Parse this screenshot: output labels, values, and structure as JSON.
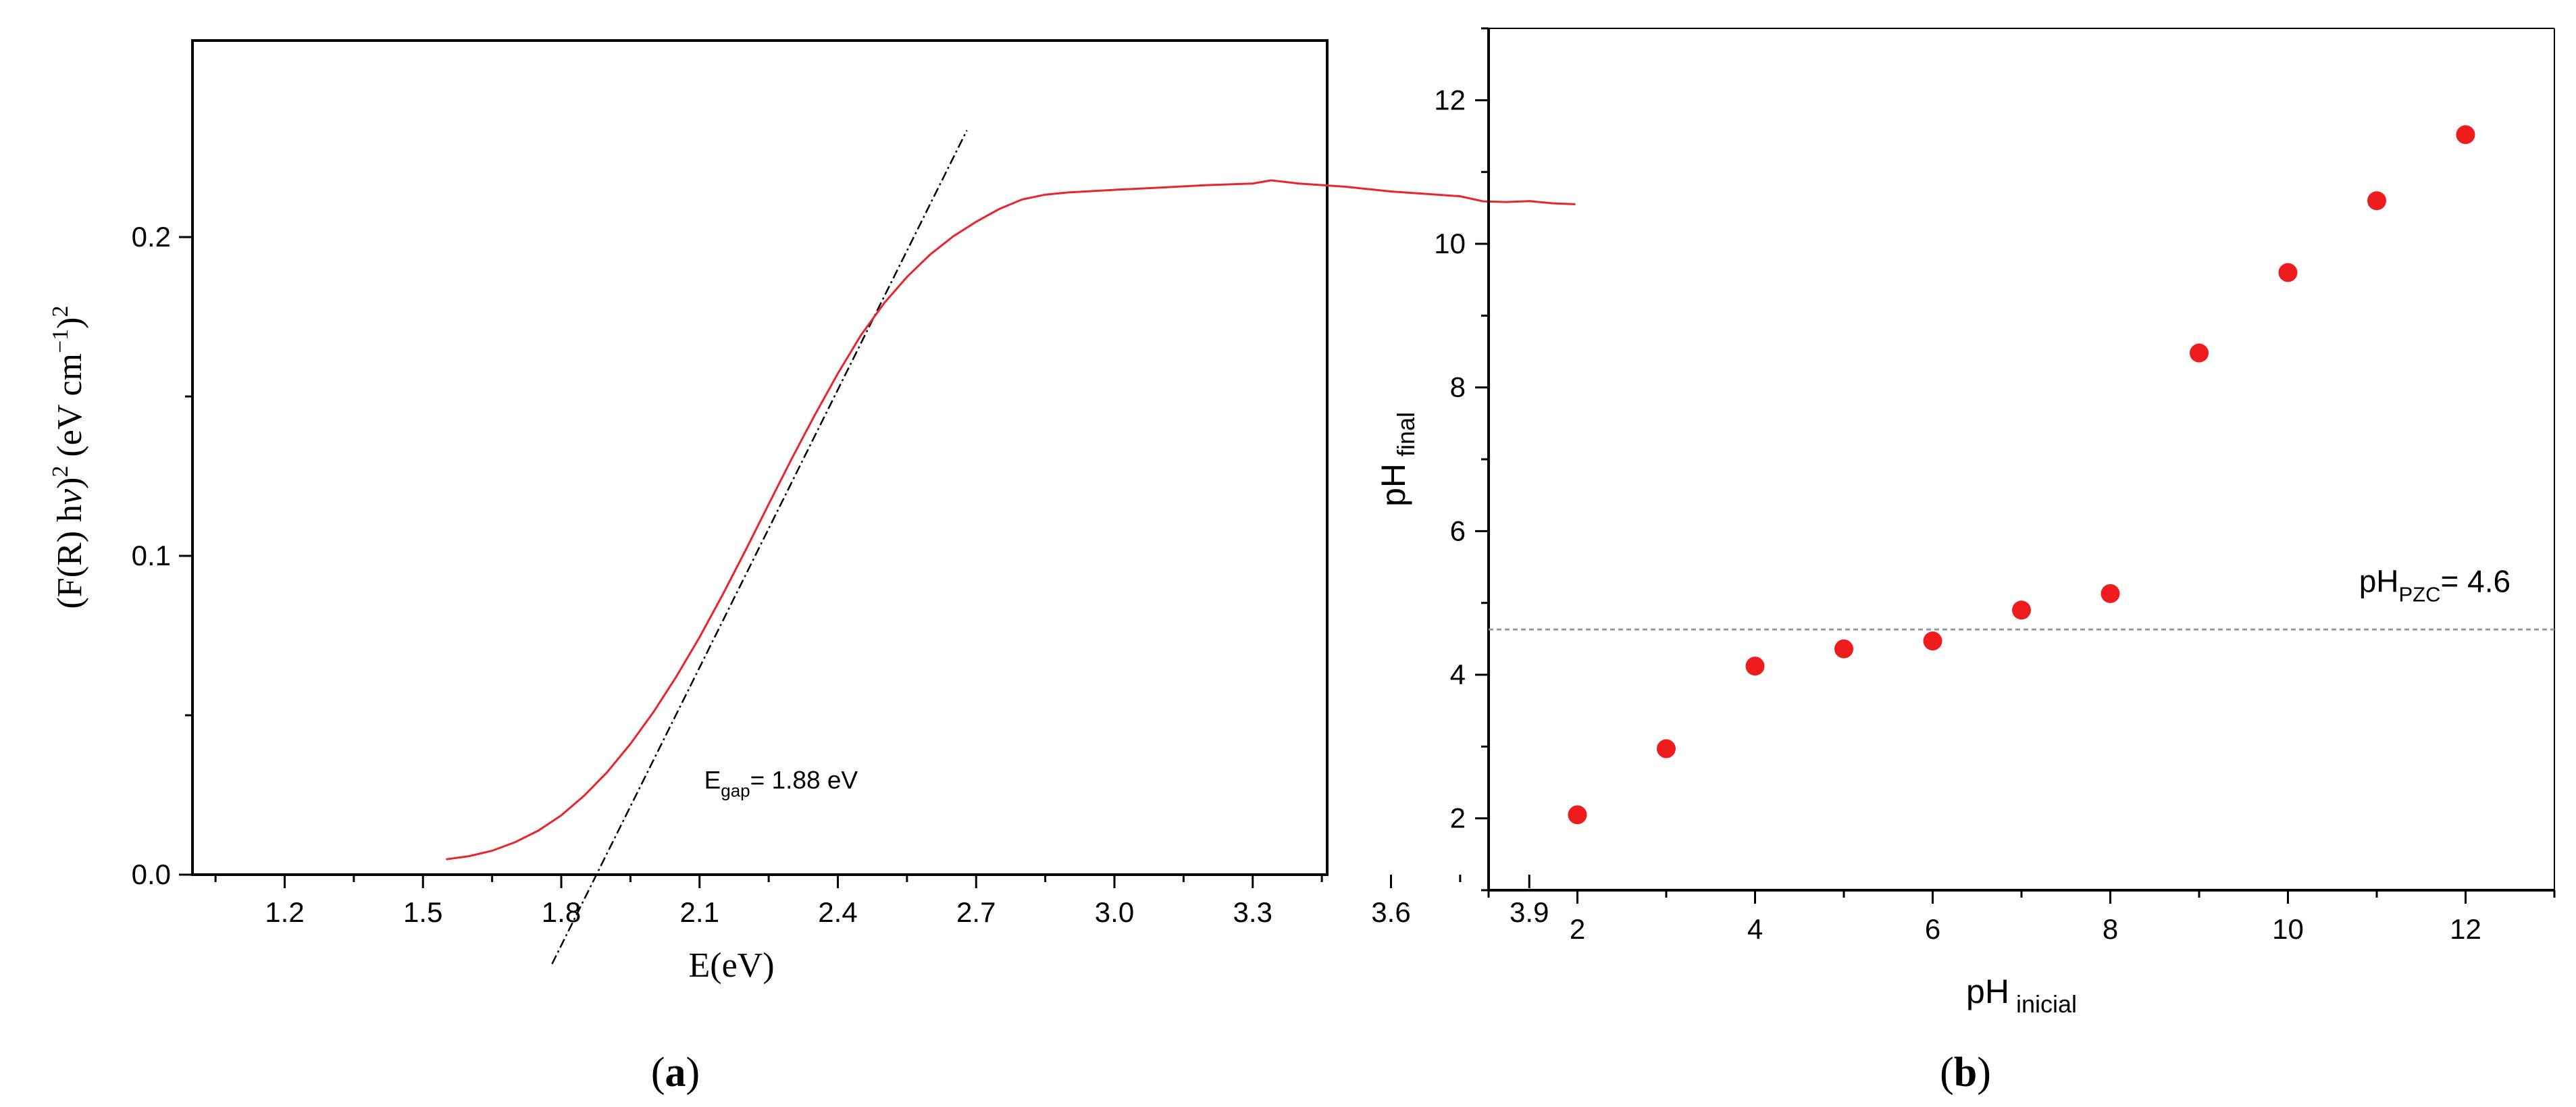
{
  "chart_data": [
    {
      "type": "line",
      "panel_label": "a",
      "xlabel": "E(eV)",
      "ylabel": {
        "part1": "(F(R) h",
        "nu": "ν",
        "part2": ")",
        "sup1": "2",
        "part3": " (eV cm",
        "sup2": "−1",
        "part4": ")",
        "sup3": "2"
      },
      "xlim": [
        1.0,
        4.0
      ],
      "ylim": [
        0.0,
        0.25
      ],
      "xticks": [
        "1.2",
        "1.5",
        "1.8",
        "2.1",
        "2.4",
        "2.7",
        "3.0",
        "3.3",
        "3.6",
        "3.9"
      ],
      "xtick_values": [
        1.2,
        1.5,
        1.8,
        2.1,
        2.4,
        2.7,
        3.0,
        3.3,
        3.6,
        3.9
      ],
      "yticks": [
        "0.0",
        "0.1",
        "0.2"
      ],
      "ytick_values": [
        0.0,
        0.1,
        0.2
      ],
      "series": [
        {
          "color": "#e8242c",
          "points": [
            [
              1.55,
              0.0048
            ],
            [
              1.6,
              0.0058
            ],
            [
              1.65,
              0.0075
            ],
            [
              1.7,
              0.0102
            ],
            [
              1.75,
              0.0138
            ],
            [
              1.8,
              0.0186
            ],
            [
              1.85,
              0.0248
            ],
            [
              1.9,
              0.0322
            ],
            [
              1.95,
              0.041
            ],
            [
              2.0,
              0.051
            ],
            [
              2.05,
              0.0622
            ],
            [
              2.1,
              0.0745
            ],
            [
              2.15,
              0.0878
            ],
            [
              2.2,
              0.1018
            ],
            [
              2.25,
              0.1162
            ],
            [
              2.3,
              0.1305
            ],
            [
              2.35,
              0.1442
            ],
            [
              2.4,
              0.1572
            ],
            [
              2.45,
              0.1692
            ],
            [
              2.5,
              0.1792
            ],
            [
              2.55,
              0.1875
            ],
            [
              2.6,
              0.1945
            ],
            [
              2.65,
              0.2002
            ],
            [
              2.7,
              0.2048
            ],
            [
              2.75,
              0.2088
            ],
            [
              2.8,
              0.2118
            ],
            [
              2.85,
              0.2133
            ],
            [
              2.9,
              0.214
            ],
            [
              3.0,
              0.2148
            ],
            [
              3.1,
              0.2155
            ],
            [
              3.2,
              0.2163
            ],
            [
              3.3,
              0.2168
            ],
            [
              3.34,
              0.2178
            ],
            [
              3.4,
              0.2168
            ],
            [
              3.5,
              0.2158
            ],
            [
              3.6,
              0.2143
            ],
            [
              3.7,
              0.2133
            ],
            [
              3.75,
              0.2128
            ],
            [
              3.8,
              0.2112
            ],
            [
              3.85,
              0.211
            ],
            [
              3.9,
              0.2113
            ],
            [
              3.95,
              0.2106
            ],
            [
              4.0,
              0.2103
            ]
          ]
        }
      ],
      "tangent_line": {
        "from": [
          1.78,
          -0.028
        ],
        "to": [
          2.68,
          0.2335
        ],
        "color": "#000000"
      },
      "annotation": {
        "main": "E",
        "sub": "gap",
        "rest": "= 1.88 eV",
        "x": 2.11,
        "y": 0.027
      }
    },
    {
      "type": "scatter",
      "panel_label": "b",
      "xlabel": {
        "main": "pH",
        "sub": " inicial"
      },
      "ylabel": {
        "main": "pH",
        "sub": " final"
      },
      "xlim": [
        1.0,
        13.0
      ],
      "ylim": [
        1.0,
        13.0
      ],
      "xticks": [
        "2",
        "4",
        "6",
        "8",
        "10",
        "12"
      ],
      "xtick_values": [
        2,
        4,
        6,
        8,
        10,
        12
      ],
      "yticks": [
        "2",
        "4",
        "6",
        "8",
        "10",
        "12"
      ],
      "ytick_values": [
        2,
        4,
        6,
        8,
        10,
        12
      ],
      "series": [
        {
          "color": "#ee1c1c",
          "x": [
            2,
            3,
            4,
            5,
            6,
            7,
            8,
            9,
            10,
            11,
            12
          ],
          "y": [
            2.05,
            2.97,
            4.12,
            4.36,
            4.47,
            4.9,
            5.13,
            8.48,
            9.6,
            10.6,
            11.52
          ]
        }
      ],
      "reference_line": {
        "y": 4.63,
        "color": "#999999"
      },
      "annotation": {
        "main": "pH",
        "sub": "PZC",
        "rest": "= 4.6",
        "x": 10.8,
        "y": 5.15
      }
    }
  ]
}
